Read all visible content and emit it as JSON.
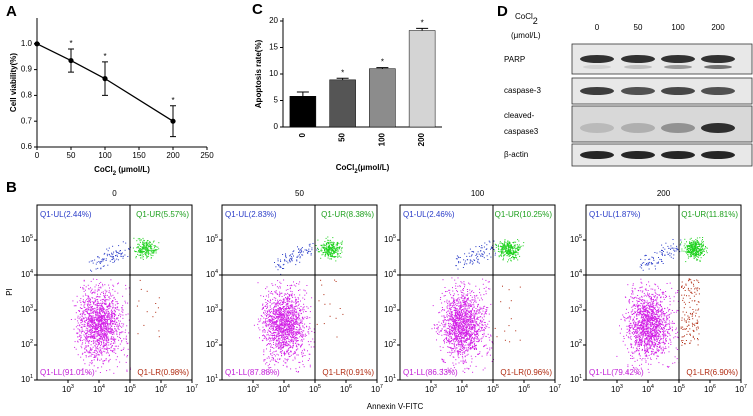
{
  "chart_data": [
    {
      "type": "line",
      "panel_label": "A",
      "x": [
        0,
        50,
        100,
        200
      ],
      "series": [
        {
          "values": [
            1.0,
            0.935,
            0.865,
            0.7
          ],
          "errors": [
            0.0,
            0.045,
            0.065,
            0.06
          ],
          "color": "#000000"
        }
      ],
      "annotations": [
        {
          "x": 50,
          "text": "*"
        },
        {
          "x": 100,
          "text": "*"
        },
        {
          "x": 200,
          "text": "*"
        }
      ],
      "xlim": [
        0,
        250
      ],
      "xticks": [
        0,
        50,
        100,
        150,
        200,
        250
      ],
      "ylim": [
        0.6,
        1.1
      ],
      "yticks": [
        0.6,
        0.7,
        0.8,
        0.9,
        {
          "value": 1,
          "label": "1.0"
        }
      ],
      "y_label": "Cell viability(%)",
      "x_label": {
        "text": "CoCl",
        "sub": "2",
        "rest": " (μmol/L)"
      }
    },
    {
      "type": "bar",
      "panel_label": "C",
      "categories": [
        "0",
        "50",
        "100",
        "200"
      ],
      "values": [
        5.8,
        8.9,
        11.0,
        18.2
      ],
      "errors": [
        0.8,
        0.3,
        0.2,
        0.4
      ],
      "colors": [
        "#000000",
        "#555555",
        "#8c8c8c",
        "#d4d4d4"
      ],
      "annotations": [
        {
          "category": "50",
          "text": "*"
        },
        {
          "category": "100",
          "text": "*"
        },
        {
          "category": "200",
          "text": "*"
        }
      ],
      "ylim": [
        0,
        20
      ],
      "yticks": [
        0,
        5,
        10,
        15,
        20
      ],
      "y_label": "Apoptosis rate(%)",
      "x_label": {
        "text": "CoCl",
        "sub": "2",
        "rest": "(μmol/L)"
      }
    }
  ],
  "blot": {
    "panel_label": "D",
    "header": {
      "text": "CoCl",
      "sub": "2",
      "line2": "(μmol/L)"
    },
    "columns": [
      "0",
      "50",
      "100",
      "200"
    ],
    "rows": [
      "PARP",
      "caspase-3",
      "cleaved-",
      "caspase3",
      "β-actin"
    ]
  },
  "flow": {
    "panel_label": "B",
    "y_label": "PI",
    "x_label": "Annexin V-FITC",
    "tick_base": "10",
    "x_tick_exps": [
      "3",
      "4",
      "5",
      "6",
      "7"
    ],
    "y_tick_exps": [
      "1",
      "2",
      "3",
      "4",
      "5"
    ],
    "panels": [
      {
        "title": "0",
        "UL": "Q1-UL(2.44%)",
        "UR": "Q1-UR(5.57%)",
        "LL": "Q1-LL(91.01%)",
        "LR": "Q1-LR(0.98%)"
      },
      {
        "title": "50",
        "UL": "Q1-UL(2.83%)",
        "UR": "Q1-UR(8.38%)",
        "LL": "Q1-LL(87.88%)",
        "LR": "Q1-LR(0.91%)"
      },
      {
        "title": "100",
        "UL": "Q1-UL(2.46%)",
        "UR": "Q1-UR(10.25%)",
        "LL": "Q1-LL(86.33%)",
        "LR": "Q1-LR(0.96%)"
      },
      {
        "title": "200",
        "UL": "Q1-UL(1.87%)",
        "UR": "Q1-UR(11.81%)",
        "LL": "Q1-LL(79.42%)",
        "LR": "Q1-LR(6.90%)"
      }
    ]
  }
}
